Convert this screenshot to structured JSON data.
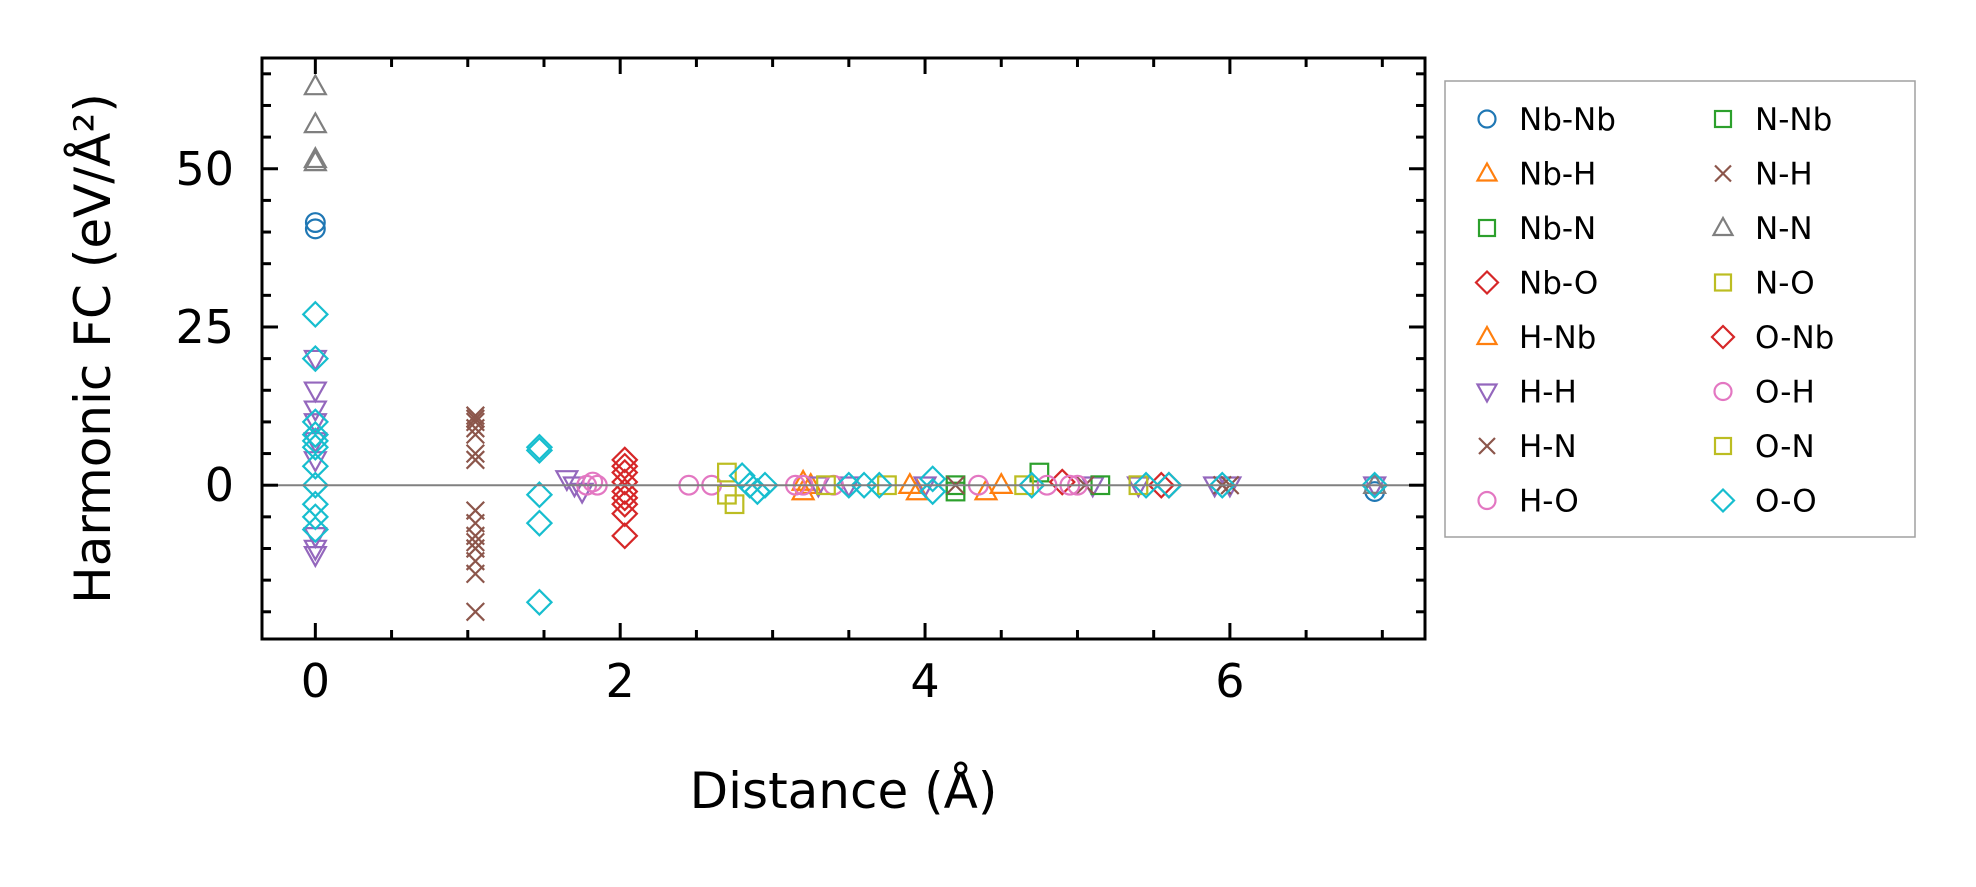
{
  "chart_data": {
    "type": "scatter",
    "title": "",
    "xlabel": "Distance (Å)",
    "ylabel": "Harmonic FC (eV/Å²)",
    "xlim": [
      -0.35,
      7.28
    ],
    "ylim": [
      -24.3,
      67.5
    ],
    "xticks": [
      0,
      2,
      4,
      6
    ],
    "xtick_labels": [
      "0",
      "2",
      "4",
      "6"
    ],
    "yticks": [
      0,
      25,
      50
    ],
    "ytick_labels": [
      "0",
      "25",
      "50"
    ],
    "x_minor_step": 0.5,
    "y_minor_step": 5,
    "grid": false,
    "zero_line": true,
    "legend_placement": "outside-right",
    "legend_columns": 2,
    "series": [
      {
        "name": "Nb-Nb",
        "color": "#1f77b4",
        "marker": "circle",
        "points": [
          [
            0,
            41.5
          ],
          [
            0,
            40.5
          ],
          [
            6.95,
            -1
          ]
        ]
      },
      {
        "name": "Nb-H",
        "color": "#ff7f0e",
        "marker": "triangle-up",
        "points": [
          [
            3.2,
            -1
          ],
          [
            3.2,
            0.5
          ],
          [
            3.95,
            -1
          ],
          [
            4.4,
            -1
          ],
          [
            4.5,
            0
          ]
        ]
      },
      {
        "name": "Nb-N",
        "color": "#2ca02c",
        "marker": "square",
        "points": [
          [
            4.2,
            0
          ],
          [
            4.2,
            -1
          ],
          [
            4.75,
            2
          ]
        ]
      },
      {
        "name": "Nb-O",
        "color": "#d62728",
        "marker": "diamond",
        "points": [
          [
            2.03,
            4
          ],
          [
            2.03,
            2
          ],
          [
            2.03,
            0.5
          ],
          [
            2.03,
            -1
          ],
          [
            2.03,
            -3
          ],
          [
            2.03,
            -4.5
          ],
          [
            2.03,
            -8
          ],
          [
            4.9,
            0.5
          ],
          [
            5.6,
            0
          ]
        ]
      },
      {
        "name": "H-Nb",
        "color": "#ff7f0e",
        "marker": "triangle-up",
        "points": [
          [
            3.25,
            0
          ],
          [
            3.9,
            0
          ]
        ]
      },
      {
        "name": "H-H",
        "color": "#9467bd",
        "marker": "triangle-down",
        "points": [
          [
            0,
            20
          ],
          [
            0,
            15
          ],
          [
            0,
            12
          ],
          [
            0,
            10
          ],
          [
            0,
            7
          ],
          [
            0,
            4
          ],
          [
            0,
            -8
          ],
          [
            0,
            -10
          ],
          [
            0,
            -11
          ],
          [
            1.65,
            1
          ],
          [
            1.7,
            0
          ],
          [
            1.75,
            -1
          ],
          [
            3.3,
            0
          ],
          [
            3.5,
            0
          ],
          [
            4.0,
            0
          ],
          [
            5.1,
            0
          ],
          [
            5.4,
            0
          ],
          [
            5.9,
            0
          ],
          [
            6.0,
            0
          ],
          [
            6.95,
            0
          ]
        ]
      },
      {
        "name": "H-N",
        "color": "#8c564b",
        "marker": "x",
        "points": [
          [
            1.05,
            10.5
          ],
          [
            1.05,
            10
          ],
          [
            1.05,
            9
          ],
          [
            1.05,
            5
          ],
          [
            1.05,
            4
          ],
          [
            1.05,
            -4
          ],
          [
            1.05,
            -6
          ],
          [
            1.05,
            -9
          ],
          [
            1.05,
            -10
          ],
          [
            1.05,
            -12
          ],
          [
            1.05,
            -14
          ],
          [
            1.05,
            -20
          ]
        ]
      },
      {
        "name": "H-O",
        "color": "#e377c2",
        "marker": "circle",
        "points": [
          [
            1.78,
            0
          ],
          [
            1.82,
            0.5
          ],
          [
            2.45,
            0
          ],
          [
            2.6,
            0
          ],
          [
            3.15,
            0
          ],
          [
            3.4,
            0
          ],
          [
            4.35,
            0
          ],
          [
            4.8,
            0
          ]
        ]
      },
      {
        "name": "N-Nb",
        "color": "#2ca02c",
        "marker": "square",
        "points": [
          [
            5.15,
            0
          ]
        ]
      },
      {
        "name": "N-H",
        "color": "#8c564b",
        "marker": "x",
        "points": [
          [
            1.05,
            11
          ],
          [
            1.05,
            8
          ],
          [
            1.05,
            -8
          ],
          [
            4.2,
            0
          ],
          [
            5.05,
            0
          ],
          [
            5.95,
            0
          ],
          [
            6.0,
            0
          ]
        ]
      },
      {
        "name": "N-N",
        "color": "#7f7f7f",
        "marker": "triangle-up",
        "points": [
          [
            0,
            63
          ],
          [
            0,
            57
          ],
          [
            0,
            51.5
          ],
          [
            0,
            51
          ],
          [
            6.95,
            0
          ]
        ]
      },
      {
        "name": "N-O",
        "color": "#bcbd22",
        "marker": "square",
        "points": [
          [
            2.7,
            2
          ],
          [
            2.7,
            -1.5
          ],
          [
            3.35,
            0
          ],
          [
            4.65,
            0
          ]
        ]
      },
      {
        "name": "O-Nb",
        "color": "#d62728",
        "marker": "diamond",
        "points": [
          [
            2.03,
            3
          ],
          [
            2.03,
            -2
          ],
          [
            5.55,
            0
          ]
        ]
      },
      {
        "name": "O-H",
        "color": "#e377c2",
        "marker": "circle",
        "points": [
          [
            1.85,
            0
          ],
          [
            3.2,
            0
          ],
          [
            4.95,
            0
          ],
          [
            5.0,
            0
          ]
        ]
      },
      {
        "name": "O-N",
        "color": "#bcbd22",
        "marker": "square",
        "points": [
          [
            2.75,
            -3
          ],
          [
            3.75,
            0
          ],
          [
            5.4,
            0
          ]
        ]
      },
      {
        "name": "O-O",
        "color": "#17becf",
        "marker": "diamond",
        "points": [
          [
            0,
            27
          ],
          [
            0,
            20
          ],
          [
            0,
            10
          ],
          [
            0,
            8
          ],
          [
            0,
            7
          ],
          [
            0,
            6
          ],
          [
            0,
            3
          ],
          [
            0,
            0
          ],
          [
            0,
            -3
          ],
          [
            0,
            -5
          ],
          [
            0,
            -7
          ],
          [
            1.47,
            6
          ],
          [
            1.47,
            5.5
          ],
          [
            1.47,
            -1.5
          ],
          [
            1.47,
            -6
          ],
          [
            1.47,
            -18.5
          ],
          [
            2.8,
            1.5
          ],
          [
            2.85,
            0
          ],
          [
            2.9,
            -1
          ],
          [
            2.95,
            0
          ],
          [
            3.5,
            0
          ],
          [
            3.6,
            0
          ],
          [
            3.7,
            0
          ],
          [
            4.05,
            1
          ],
          [
            4.05,
            -1
          ],
          [
            4.7,
            0
          ],
          [
            5.45,
            0
          ],
          [
            5.6,
            0
          ],
          [
            5.95,
            0
          ],
          [
            6.95,
            0
          ]
        ]
      }
    ]
  }
}
